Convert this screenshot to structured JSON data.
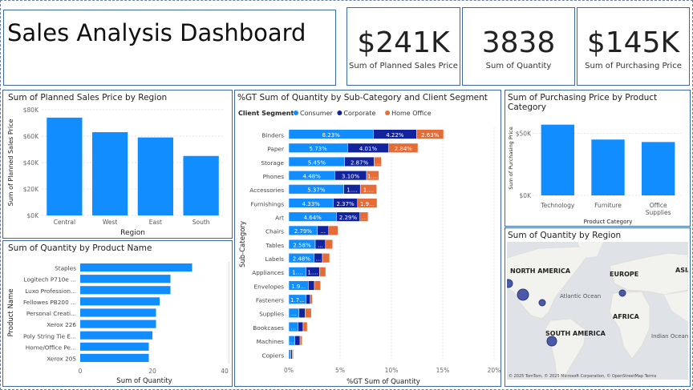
{
  "title": "Sales Analysis Dashboard",
  "kpis": [
    {
      "value": "$241K",
      "label": "Sum of Planned Sales Price"
    },
    {
      "value": "3838",
      "label": "Sum of Quantity"
    },
    {
      "value": "$145K",
      "label": "Sum of Purchasing Price"
    }
  ],
  "colors": {
    "primary": "#118dff",
    "consumer": "#118dff",
    "corporate": "#12239e",
    "home_office": "#e66c37",
    "border": "#3a68a8"
  },
  "region_chart": {
    "title": "Sum of Planned Sales Price by Region",
    "chart_data": {
      "type": "bar",
      "categories": [
        "Central",
        "West",
        "East",
        "South"
      ],
      "values": [
        74000,
        63000,
        59000,
        45000
      ],
      "xlabel": "Region",
      "ylabel": "Sum of Planned Sales Price",
      "ylim": [
        0,
        80000
      ],
      "y_ticks": [
        "$0K",
        "$20K",
        "$40K",
        "$60K",
        "$80K"
      ],
      "grid": true
    }
  },
  "product_chart": {
    "title": "Sum of Quantity by Product Name",
    "chart_data": {
      "type": "bar",
      "orientation": "horizontal",
      "categories": [
        "Staples",
        "Logitech P710e ...",
        "Luxo Profession...",
        "Fellowes PB200 ...",
        "Personal Creati...",
        "Xerox 226",
        "Poly String Tie E...",
        "Home/Office Pe...",
        "Xerox 205"
      ],
      "values": [
        31,
        25,
        25,
        22,
        21,
        21,
        20,
        19,
        19
      ],
      "xlabel": "Sum of Quantity",
      "ylabel": "Product Name",
      "xlim": [
        0,
        40
      ],
      "x_ticks": [
        "0",
        "20",
        "40"
      ]
    }
  },
  "subcat_chart": {
    "title": "%GT Sum of Quantity by Sub-Category and Client Segment",
    "legend_title": "Client Segment",
    "chart_data": {
      "type": "bar",
      "orientation": "horizontal",
      "stacked": true,
      "categories": [
        "Binders",
        "Paper",
        "Storage",
        "Phones",
        "Accessories",
        "Furnishings",
        "Art",
        "Chairs",
        "Tables",
        "Labels",
        "Appliances",
        "Envelopes",
        "Fasteners",
        "Supplies",
        "Bookcases",
        "Machines",
        "Copiers"
      ],
      "series": [
        {
          "name": "Consumer",
          "values": [
            8.23,
            5.73,
            5.45,
            4.48,
            5.37,
            4.33,
            4.64,
            2.79,
            2.58,
            2.48,
            1.7,
            1.9,
            1.7,
            1.0,
            0.9,
            0.6,
            0.2
          ],
          "labels": [
            "8.23%",
            "5.73%",
            "5.45%",
            "4.48%",
            "5.37%",
            "4.33%",
            "4.64%",
            "2.79%",
            "2.58%",
            "2.48%",
            "1....",
            "1.9...",
            "1.7...",
            "...",
            "...",
            "...",
            ""
          ]
        },
        {
          "name": "Corporate",
          "values": [
            4.22,
            4.01,
            2.87,
            3.1,
            1.6,
            2.37,
            2.29,
            1.1,
            1.0,
            0.8,
            1.3,
            0.6,
            0.4,
            0.6,
            0.5,
            0.5,
            0.15
          ],
          "labels": [
            "4.22%",
            "4.01%",
            "2.87%",
            "3.10%",
            "1....",
            "2.37%",
            "2.29%",
            "...",
            "...",
            "...",
            "1....",
            "",
            "",
            "",
            "",
            "",
            ""
          ]
        },
        {
          "name": "Home Office",
          "values": [
            2.63,
            2.84,
            0.7,
            1.2,
            1.6,
            1.9,
            0.8,
            0.9,
            0.7,
            0.7,
            0.6,
            0.6,
            0.2,
            0.6,
            0.4,
            0.2,
            0.1
          ],
          "labels": [
            "2.63%",
            "2.84%",
            "...",
            "1....",
            "1....",
            "1.9...",
            "...",
            "",
            "",
            "",
            "",
            "",
            "",
            "",
            "",
            "",
            ""
          ]
        }
      ],
      "xlabel": "%GT Sum of Quantity",
      "ylabel": "Sub-Category",
      "xlim": [
        0,
        20
      ],
      "x_ticks": [
        "0%",
        "5%",
        "10%",
        "15%",
        "20%"
      ]
    }
  },
  "purchasing_chart": {
    "title": "Sum of Purchasing Price by Product Category",
    "chart_data": {
      "type": "bar",
      "categories": [
        "Technology",
        "Furniture",
        "Office Supplies"
      ],
      "values": [
        57000,
        45000,
        43000
      ],
      "xlabel": "Product Category",
      "ylabel": "Sum of Purchasing Price",
      "ylim": [
        0,
        60000
      ],
      "y_ticks": [
        "$0K",
        "$50K"
      ]
    }
  },
  "map": {
    "title": "Sum of Quantity by Region",
    "labels": [
      "NORTH AMERICA",
      "EUROPE",
      "ASIA",
      "Atlantic Ocean",
      "AFRICA",
      "SOUTH AMERICA",
      "Indian Ocean"
    ],
    "attribution": "© 2025 TomTom, © 2025 Microsoft Corporation, © OpenStreetMap Terms"
  }
}
